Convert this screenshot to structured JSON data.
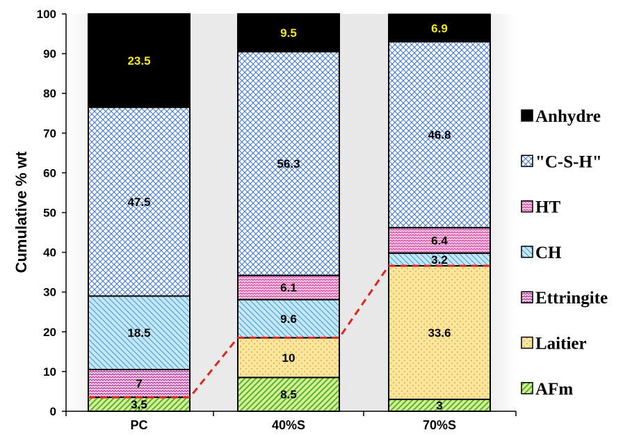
{
  "chart_data": {
    "type": "bar",
    "stacked": true,
    "title": "",
    "xlabel": "",
    "ylabel": "Cumulative % wt",
    "ylim": [
      0,
      100
    ],
    "yticks": [
      0,
      10,
      20,
      30,
      40,
      50,
      60,
      70,
      80,
      90,
      100
    ],
    "categories": [
      "PC",
      "40%S",
      "70%S"
    ],
    "series": [
      {
        "name": "AFm",
        "values": [
          3.5,
          8.5,
          3
        ],
        "labels": [
          "3,5",
          "8.5",
          "3"
        ],
        "color": "#d7ef9d",
        "hatch": "#5cb82c"
      },
      {
        "name": "Laitier",
        "values": [
          0,
          10,
          33.6
        ],
        "labels": [
          "",
          "10",
          "33.6"
        ],
        "color": "#fbe59a",
        "hatch": "#d9963a"
      },
      {
        "name": "Ettringite",
        "values": [
          7,
          0,
          0
        ],
        "labels": [
          "7",
          "",
          ""
        ],
        "color": "#f5d3ee",
        "hatch": "#a62c8a"
      },
      {
        "name": "CH",
        "values": [
          18.5,
          9.6,
          3.2
        ],
        "labels": [
          "18.5",
          "9.6",
          "3.2"
        ],
        "color": "#c4e6f6",
        "hatch": "#3d9cc9"
      },
      {
        "name": "HT",
        "values": [
          0,
          6.1,
          6.4
        ],
        "labels": [
          "",
          "6.1",
          "6.4"
        ],
        "color": "#fbd0ea",
        "hatch": "#d8489c"
      },
      {
        "name": "\"C-S-H\"",
        "values": [
          47.5,
          56.3,
          46.8
        ],
        "labels": [
          "47.5",
          "56.3",
          "46.8"
        ],
        "color": "#ffffff",
        "hatch": "#3a74d8"
      },
      {
        "name": "Anhydre",
        "values": [
          23.5,
          9.5,
          6.9
        ],
        "labels": [
          "23.5",
          "9.5",
          "6.9"
        ],
        "color": "#000000",
        "hatch": "#000000"
      }
    ],
    "legend": {
      "placement": "right",
      "order": [
        "Anhydre",
        "\"C-S-H\"",
        "HT",
        "CH",
        "Ettringite",
        "Laitier",
        "AFm"
      ]
    },
    "annotation": {
      "type": "dashed-line",
      "color": "#e3231f",
      "points": [
        [
          0,
          3.5
        ],
        [
          1,
          18.5
        ],
        [
          2,
          36.6
        ]
      ]
    },
    "grid": false,
    "plot_background": "#e8e8e8",
    "label_colors": {
      "Anhydre": "#f4e81a",
      "default": "#000000"
    }
  }
}
